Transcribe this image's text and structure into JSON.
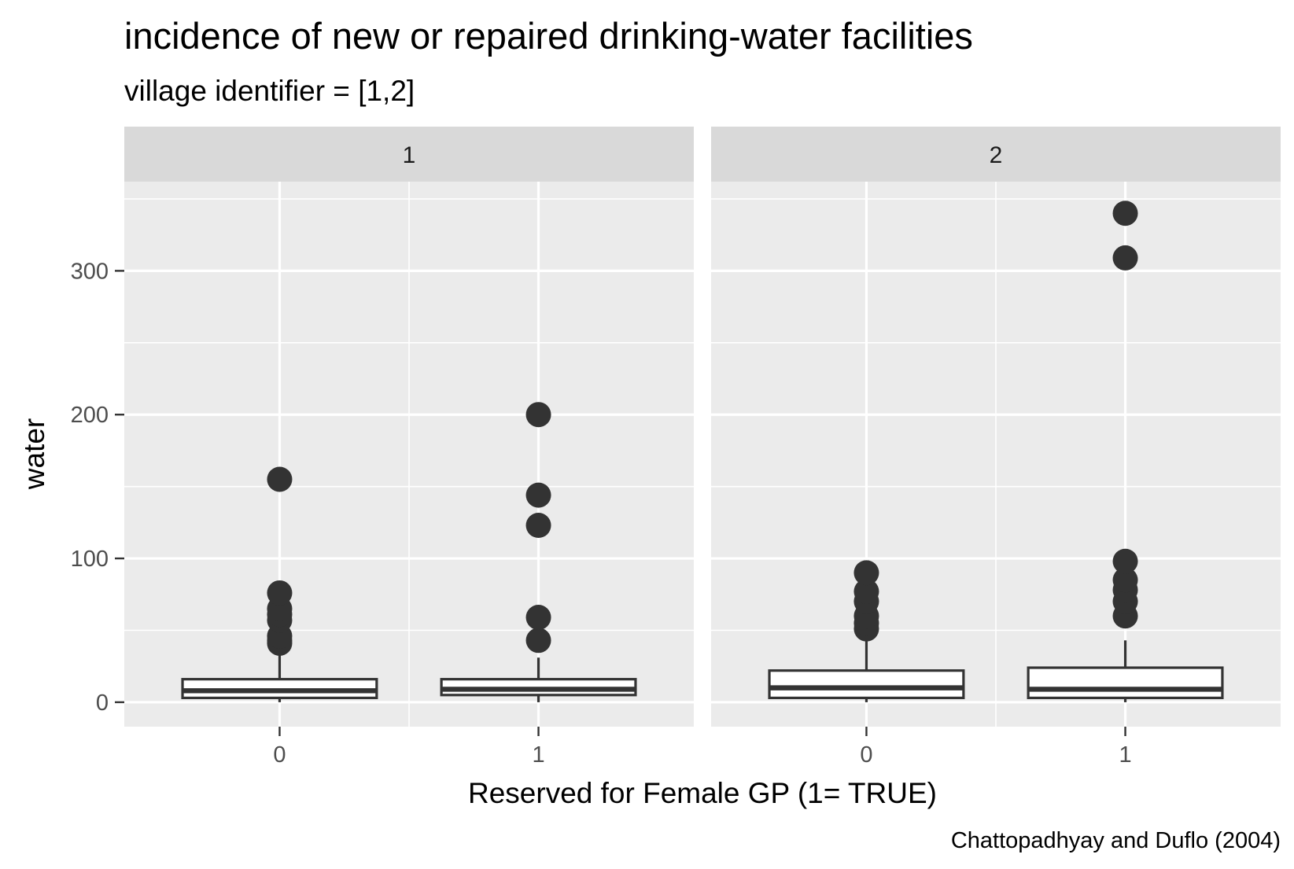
{
  "chart_data": {
    "type": "boxplot",
    "title": "incidence of new or repaired drinking-water facilities",
    "subtitle": "village identifier = [1,2]",
    "xlabel": "Reserved for Female GP (1= TRUE)",
    "ylabel": "water",
    "caption": "Chattopadhyay and Duflo (2004)",
    "ylim": [
      -17,
      362
    ],
    "y_ticks": [
      0,
      100,
      200,
      300
    ],
    "y_tick_labels": [
      "0",
      "100",
      "200",
      "300"
    ],
    "x_categories": [
      "0",
      "1"
    ],
    "grid": true,
    "legend": "none",
    "colors": {
      "panel": "#ebebeb",
      "strip": "#d9d9d9",
      "grid": "#ffffff",
      "box_fill": "#ffffff",
      "box_line": "#333333",
      "outlier": "#333333"
    },
    "facets": [
      {
        "label": "1",
        "boxes": [
          {
            "category": "0",
            "q1": 3,
            "median": 8,
            "q3": 16,
            "whisker_low": 0,
            "whisker_high": 38,
            "outliers": [
              41,
              43,
              46,
              57,
              61,
              65,
              76,
              155
            ]
          },
          {
            "category": "1",
            "q1": 5,
            "median": 9,
            "q3": 16,
            "whisker_low": 0,
            "whisker_high": 31,
            "outliers": [
              43,
              59,
              123,
              144,
              200
            ]
          }
        ]
      },
      {
        "label": "2",
        "boxes": [
          {
            "category": "0",
            "q1": 3,
            "median": 10,
            "q3": 22,
            "whisker_low": 0,
            "whisker_high": 48,
            "outliers": [
              51,
              55,
              60,
              70,
              77,
              90
            ]
          },
          {
            "category": "1",
            "q1": 3,
            "median": 9,
            "q3": 24,
            "whisker_low": 0,
            "whisker_high": 43,
            "outliers": [
              60,
              70,
              78,
              85,
              98,
              309,
              340
            ]
          }
        ]
      }
    ]
  }
}
